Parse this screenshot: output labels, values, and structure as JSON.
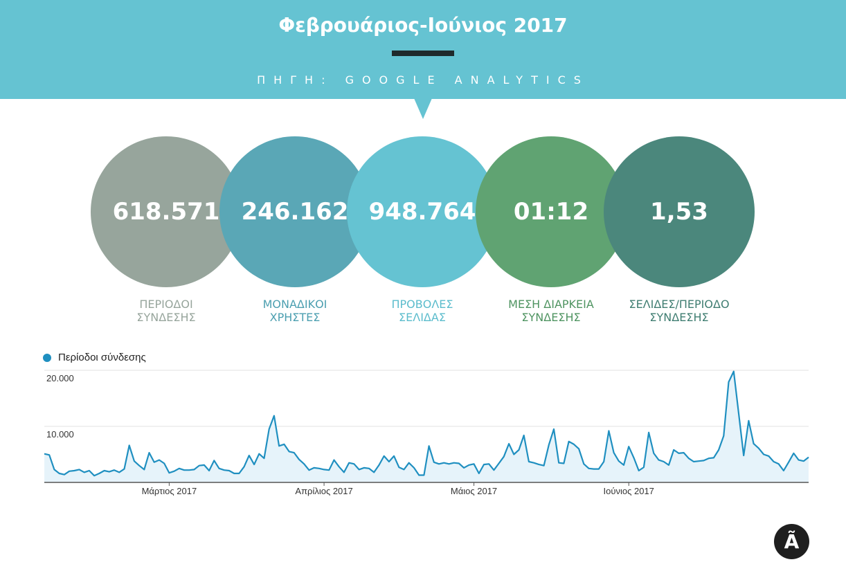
{
  "header": {
    "title": "Φεβρουάριος-Ιούνιος 2017",
    "source": "ΠΗΓΗ: GOOGLE ANALYTICS"
  },
  "stats": [
    {
      "value": "618.571",
      "label_line1": "ΠΕΡΙΟΔΟΙ",
      "label_line2": "ΣΥΝΔΕΣΗΣ",
      "color": "#97a59c",
      "label_color": "#97a59c"
    },
    {
      "value": "246.162",
      "label_line1": "ΜΟΝΑΔΙΚΟΙ",
      "label_line2": "ΧΡΗΣΤΕΣ",
      "color": "#5aa7b6",
      "label_color": "#4c9fb0"
    },
    {
      "value": "948.764",
      "label_line1": "ΠΡΟΒΟΛΕΣ",
      "label_line2": "ΣΕΛΙΔΑΣ",
      "color": "#65c3d2",
      "label_color": "#5bbccc"
    },
    {
      "value": "01:12",
      "label_line1": "ΜΕΣΗ ΔΙΑΡΚΕΙΑ",
      "label_line2": "ΣΥΝΔΕΣΗΣ",
      "color": "#60a372",
      "label_color": "#4f9461"
    },
    {
      "value": "1,53",
      "label_line1": "ΣΕΛΙΔΕΣ/ΠΕΡΙΟΔΟ",
      "label_line2": "ΣΥΝΔΕΣΗΣ",
      "color": "#4b877c",
      "label_color": "#3f7d71"
    }
  ],
  "colors": {
    "header_bg": "#65c3d2",
    "line": "#1f8fc0",
    "area": "#e6f3fa",
    "grid": "#e2e2e2",
    "axis": "#555555"
  },
  "logo_icon": "a-tilde-logo",
  "chart_data": {
    "type": "area",
    "title": "",
    "xlabel": "",
    "ylabel": "",
    "series": [
      {
        "name": "Περίοδοι σύνδεσης",
        "values": [
          5100,
          4900,
          2300,
          1600,
          1400,
          2000,
          2100,
          2300,
          1800,
          2100,
          1200,
          1600,
          2100,
          1900,
          2200,
          1800,
          2400,
          6600,
          3800,
          3000,
          2300,
          5300,
          3600,
          4000,
          3400,
          1700,
          2000,
          2500,
          2200,
          2200,
          2300,
          3000,
          3100,
          2100,
          3900,
          2500,
          2200,
          2100,
          1600,
          1600,
          2800,
          4800,
          3200,
          5100,
          4300,
          9500,
          11900,
          6500,
          6800,
          5500,
          5300,
          4100,
          3300,
          2200,
          2600,
          2500,
          2300,
          2200,
          4000,
          2800,
          1800,
          3500,
          3300,
          2300,
          2600,
          2500,
          1800,
          3100,
          4700,
          3700,
          4700,
          2700,
          2300,
          3500,
          2600,
          1300,
          1300,
          6500,
          3600,
          3300,
          3500,
          3300,
          3500,
          3400,
          2600,
          3100,
          3300,
          1600,
          3200,
          3300,
          2200,
          3400,
          4600,
          6900,
          5000,
          5800,
          8400,
          3700,
          3500,
          3200,
          3000,
          6700,
          9500,
          3500,
          3400,
          7300,
          6800,
          6000,
          3300,
          2500,
          2400,
          2400,
          3700,
          9200,
          5300,
          3800,
          3100,
          6400,
          4400,
          2100,
          2700,
          8900,
          5200,
          4000,
          3700,
          3100,
          5800,
          5200,
          5300,
          4300,
          3700,
          3800,
          3900,
          4300,
          4400,
          5800,
          8300,
          17900,
          19800,
          12300,
          4800,
          11000,
          6900,
          6100,
          5000,
          4700,
          3700,
          3300,
          2100,
          3600,
          5200,
          4000,
          3800,
          4500
        ]
      }
    ],
    "x_tick_labels": [
      "Μάρτιος 2017",
      "Απρίλιος 2017",
      "Μάιος 2017",
      "Ιούνιος 2017"
    ],
    "x_tick_index": [
      25,
      56,
      86,
      117
    ],
    "y_tick_labels": [
      "20.000",
      "10.000"
    ],
    "y_ticks": [
      20000,
      10000
    ],
    "ylim": [
      0,
      20000
    ],
    "grid": true,
    "legend": "top-left"
  }
}
